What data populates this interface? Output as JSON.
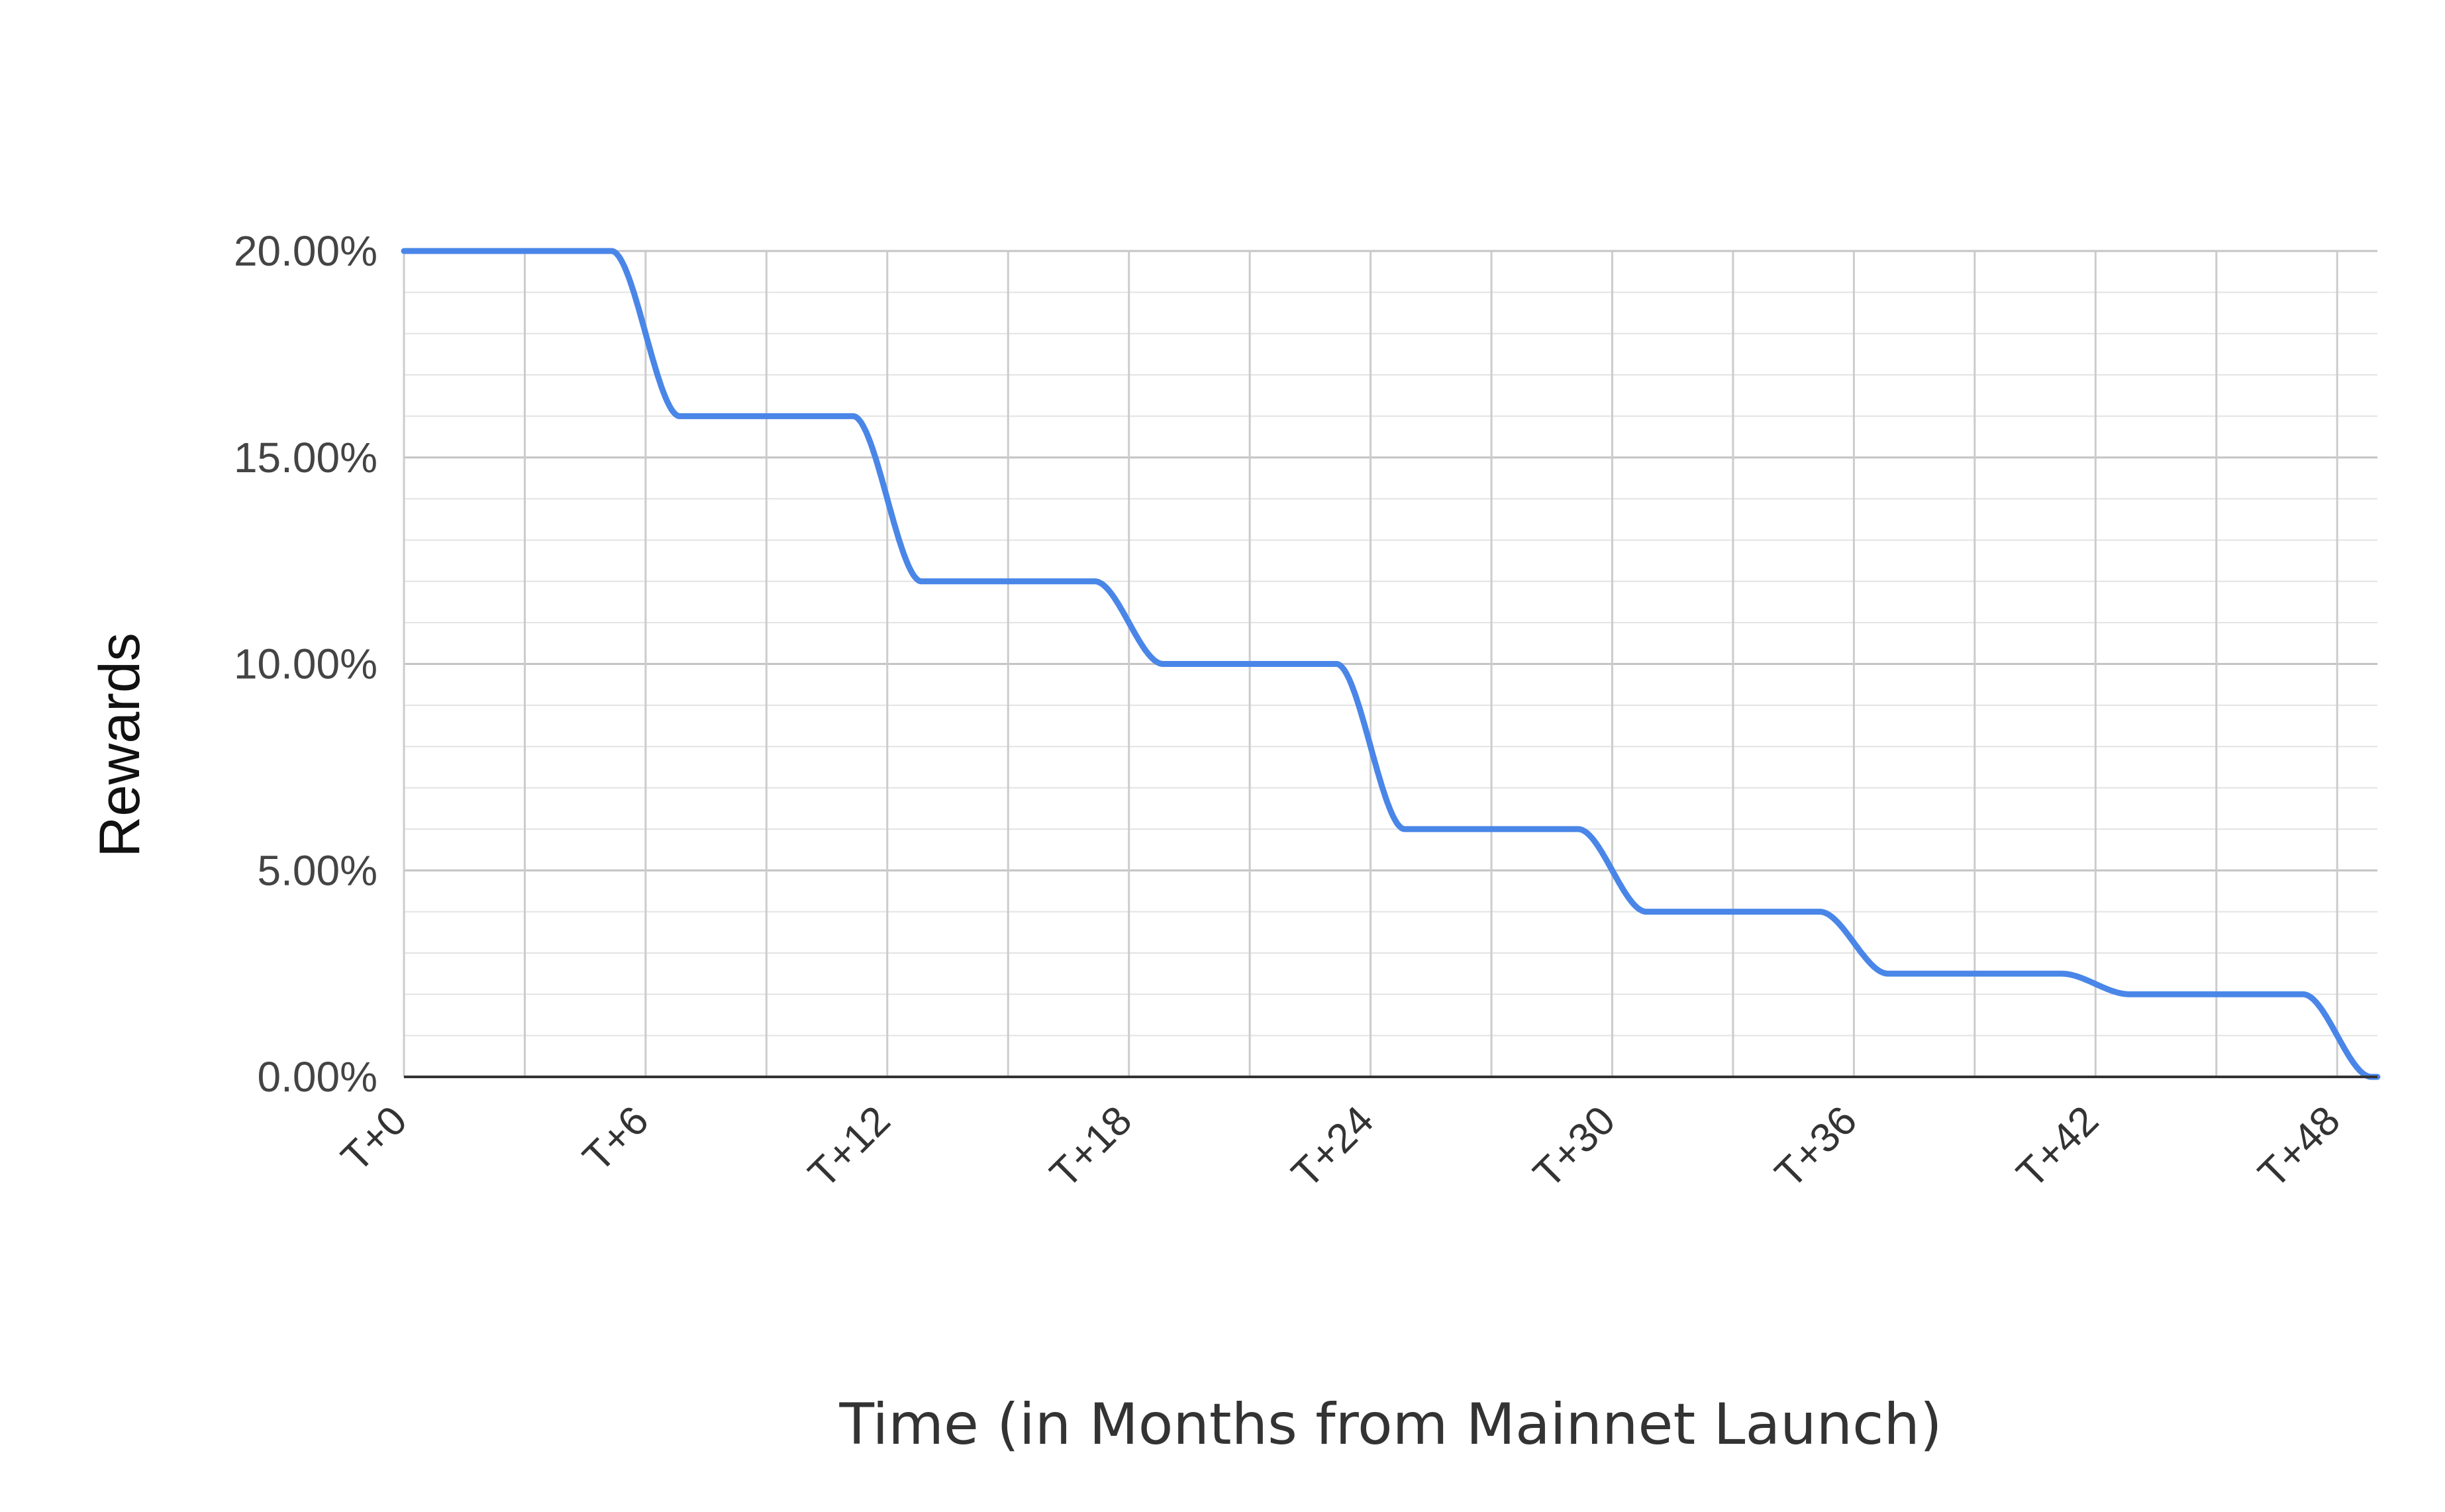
{
  "chart_data": {
    "type": "line",
    "title": "",
    "xlabel": "Time (in Months from Mainnet Launch)",
    "ylabel": "Rewards",
    "x_unit": "months",
    "xlim": [
      0,
      49
    ],
    "ylim": [
      0,
      20
    ],
    "y_ticks": [
      "0.00%",
      "5.00%",
      "10.00%",
      "15.00%",
      "20.00%"
    ],
    "x_ticks": [
      {
        "value": 0,
        "label": "T+0"
      },
      {
        "value": 6,
        "label": "T+6"
      },
      {
        "value": 12,
        "label": "T+12"
      },
      {
        "value": 18,
        "label": "T+18"
      },
      {
        "value": 24,
        "label": "T+24"
      },
      {
        "value": 30,
        "label": "T+30"
      },
      {
        "value": 36,
        "label": "T+36"
      },
      {
        "value": 42,
        "label": "T+42"
      },
      {
        "value": 48,
        "label": "T+48"
      }
    ],
    "grid": true,
    "legend": "none",
    "series": [
      {
        "color": "#4a86e8",
        "step_levels": [
          20,
          16,
          12,
          10,
          6,
          4,
          2.5,
          2,
          0
        ],
        "step_months": [
          6,
          12,
          18,
          24,
          30,
          36,
          42,
          48
        ],
        "x": [
          0,
          5.2,
          6.8,
          11.2,
          12.8,
          17.2,
          18.8,
          23.2,
          24.8,
          29.2,
          30.8,
          35.2,
          36.8,
          41.2,
          42.8,
          47.5,
          49
        ],
        "y": [
          20,
          20,
          16,
          16,
          12,
          12,
          10,
          10,
          6,
          6,
          4,
          4,
          2.5,
          2.5,
          2,
          2,
          0
        ]
      }
    ]
  }
}
